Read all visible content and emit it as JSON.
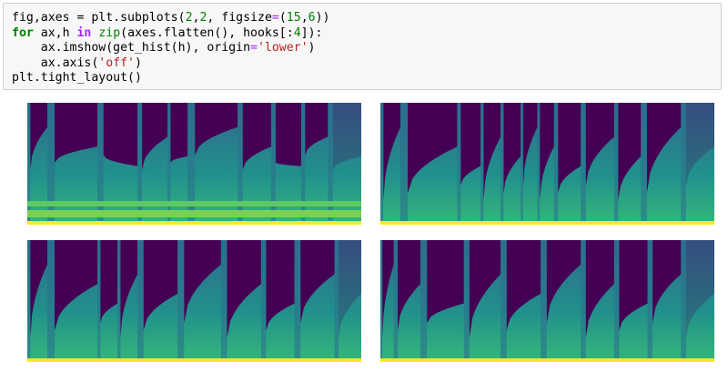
{
  "code": {
    "lines": [
      [
        {
          "text": "fig,axes = plt.subplots(",
          "color": "#000000"
        },
        {
          "text": "2",
          "color": "#008000"
        },
        {
          "text": ",",
          "color": "#000000"
        },
        {
          "text": "2",
          "color": "#008000"
        },
        {
          "text": ", figsize",
          "color": "#000000"
        },
        {
          "text": "=",
          "color": "#aa22ff"
        },
        {
          "text": "(",
          "color": "#000000"
        },
        {
          "text": "15",
          "color": "#008000"
        },
        {
          "text": ",",
          "color": "#000000"
        },
        {
          "text": "6",
          "color": "#008000"
        },
        {
          "text": "))",
          "color": "#000000"
        }
      ],
      [
        {
          "text": "for",
          "color": "#008000",
          "bold": true
        },
        {
          "text": " ax,h ",
          "color": "#000000"
        },
        {
          "text": "in",
          "color": "#aa22ff",
          "bold": true
        },
        {
          "text": " ",
          "color": "#000000"
        },
        {
          "text": "zip",
          "color": "#008000"
        },
        {
          "text": "(axes.flatten(), hooks[:",
          "color": "#000000"
        },
        {
          "text": "4",
          "color": "#008000"
        },
        {
          "text": "]):",
          "color": "#000000"
        }
      ],
      [
        {
          "text": "    ax.imshow(get_hist(h), origin",
          "color": "#000000"
        },
        {
          "text": "=",
          "color": "#aa22ff"
        },
        {
          "text": "'lower'",
          "color": "#ba2121"
        },
        {
          "text": ")",
          "color": "#000000"
        }
      ],
      [
        {
          "text": "    ax.axis(",
          "color": "#000000"
        },
        {
          "text": "'off'",
          "color": "#ba2121"
        },
        {
          "text": ")",
          "color": "#000000"
        }
      ],
      [
        {
          "text": "plt.tight_layout()",
          "color": "#000000"
        }
      ]
    ]
  }
}
